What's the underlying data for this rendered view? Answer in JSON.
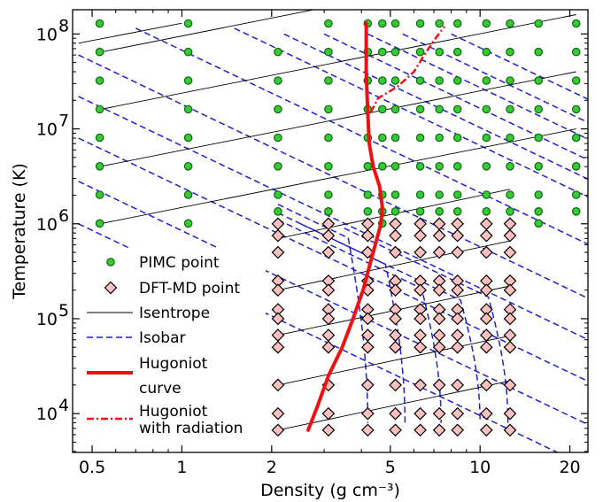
{
  "chart_data": {
    "type": "scatter",
    "xlabel": "Density (g cm⁻³)",
    "ylabel": "Temperature (K)",
    "x_scale": "log",
    "y_scale": "log",
    "xlim": [
      0.43,
      23
    ],
    "ylim": [
      3900,
      180000000
    ],
    "x_ticks": [
      {
        "value": 0.5,
        "label": "0.5"
      },
      {
        "value": 1,
        "label": "1"
      },
      {
        "value": 2,
        "label": "2"
      },
      {
        "value": 5,
        "label": "5"
      },
      {
        "value": 10,
        "label": "10"
      },
      {
        "value": 20,
        "label": "20"
      }
    ],
    "y_ticks": [
      {
        "value": 10000,
        "base": "10",
        "exp": "4"
      },
      {
        "value": 100000,
        "base": "10",
        "exp": "5"
      },
      {
        "value": 1000000,
        "base": "10",
        "exp": "6"
      },
      {
        "value": 10000000,
        "base": "10",
        "exp": "7"
      },
      {
        "value": 100000000,
        "base": "10",
        "exp": "8"
      }
    ],
    "grid": false,
    "legend_position": "bottom-left",
    "colors": {
      "pimc_fill": "#33cc33",
      "pimc_edge": "#116611",
      "dft_fill": "#ffc0c0",
      "dft_edge": "#000000",
      "isentrope": "#000000",
      "isobar": "#1f1fd6",
      "hugoniot": "#ee1111"
    },
    "legend": [
      {
        "key": "pimc",
        "label": "PIMC point"
      },
      {
        "key": "dft",
        "label": "DFT-MD point"
      },
      {
        "key": "isentrope",
        "label": "Isentrope"
      },
      {
        "key": "isobar",
        "label": "Isobar"
      },
      {
        "key": "hugoniot",
        "label": "Hugoniot",
        "label2": "curve"
      },
      {
        "key": "hugoniot_rad",
        "label": "Hugoniot",
        "label2": "with radiation"
      }
    ],
    "pimc_points": {
      "densities": [
        0.53,
        1.05,
        2.1,
        3.1,
        4.2,
        4.7,
        5.2,
        6.3,
        7.3,
        8.4,
        10.5,
        12.6,
        15.7,
        21
      ],
      "temperatures": [
        129000000,
        64600000,
        32300000,
        16100000,
        8080000,
        4040000,
        2020000,
        1350000,
        1010000
      ],
      "skip": [
        [
          2.1,
          129000000
        ],
        [
          0.53,
          1350000
        ],
        [
          1.05,
          1350000
        ],
        [
          21,
          1010000
        ]
      ]
    },
    "dft_points": {
      "densities": [
        2.1,
        3.1,
        4.2,
        5.2,
        6.3,
        7.3,
        8.4,
        10.5,
        12.6
      ],
      "temperatures": [
        1000000,
        750000,
        500000,
        250000,
        200000,
        125000,
        100000,
        67000,
        50000,
        20000,
        10000,
        6700
      ]
    },
    "series": [
      {
        "key": "hugoniot",
        "points": [
          [
            2.65,
            6700
          ],
          [
            2.85,
            12000
          ],
          [
            3.1,
            25000
          ],
          [
            3.45,
            50000
          ],
          [
            3.75,
            100000
          ],
          [
            4.05,
            200000
          ],
          [
            4.25,
            350000
          ],
          [
            4.45,
            600000
          ],
          [
            4.65,
            1000000
          ],
          [
            4.7,
            1500000
          ],
          [
            4.6,
            2500000
          ],
          [
            4.38,
            4000000
          ],
          [
            4.25,
            7000000
          ],
          [
            4.2,
            15000000
          ],
          [
            4.15,
            40000000
          ],
          [
            4.15,
            130000000
          ]
        ]
      },
      {
        "key": "hugoniot_rad",
        "points": [
          [
            4.3,
            15000000
          ],
          [
            4.55,
            21000000
          ],
          [
            5.3,
            28000000
          ],
          [
            6.0,
            40000000
          ],
          [
            6.5,
            60000000
          ],
          [
            7.0,
            85000000
          ],
          [
            7.6,
            120000000
          ]
        ]
      },
      {
        "key": "isentrope",
        "slope": 0.667,
        "anchors": [
          [
            [
              0.53,
              1000000
            ],
            [
              21,
              10000000
            ]
          ],
          [
            [
              0.53,
              4000000
            ],
            [
              21,
              40000000
            ]
          ],
          [
            [
              0.53,
              16000000
            ],
            [
              21,
              160000000
            ]
          ],
          [
            [
              0.53,
              64000000
            ],
            [
              21,
              640000000
            ]
          ],
          [
            [
              0.45,
              80000000
            ],
            [
              1.0,
              130000000
            ]
          ]
        ],
        "low_anchors": [
          [
            2.1,
            6700
          ],
          [
            2.1,
            20000
          ],
          [
            2.1,
            67000
          ],
          [
            2.1,
            200000
          ],
          [
            2.1,
            700000
          ]
        ],
        "low_xmax": 12.6
      },
      {
        "key": "isobar",
        "slope": -1.5,
        "high_anchors": [
          [
            0.45,
            1000000
          ],
          [
            0.45,
            2800000
          ],
          [
            0.45,
            8000000
          ],
          [
            0.45,
            22000000
          ],
          [
            0.45,
            60000000
          ],
          [
            0.7,
            115000000
          ],
          [
            1.5,
            115000000
          ],
          [
            2.2,
            100000000
          ],
          [
            3.0,
            100000000
          ],
          [
            4.2,
            100000000
          ],
          [
            5.5,
            100000000
          ],
          [
            8.0,
            100000000
          ]
        ],
        "bend_curves": [
          {
            "x0": 2.1,
            "xr": 4.2,
            "tb": 1600000
          },
          {
            "x0": 2.1,
            "xr": 5.6,
            "tb": 1300000
          },
          {
            "x0": 2.1,
            "xr": 7.4,
            "tb": 1100000
          },
          {
            "x0": 2.5,
            "xr": 10.0,
            "tb": 1000000
          },
          {
            "x0": 3.5,
            "xr": 12.4,
            "tb": 900000
          }
        ]
      }
    ]
  }
}
